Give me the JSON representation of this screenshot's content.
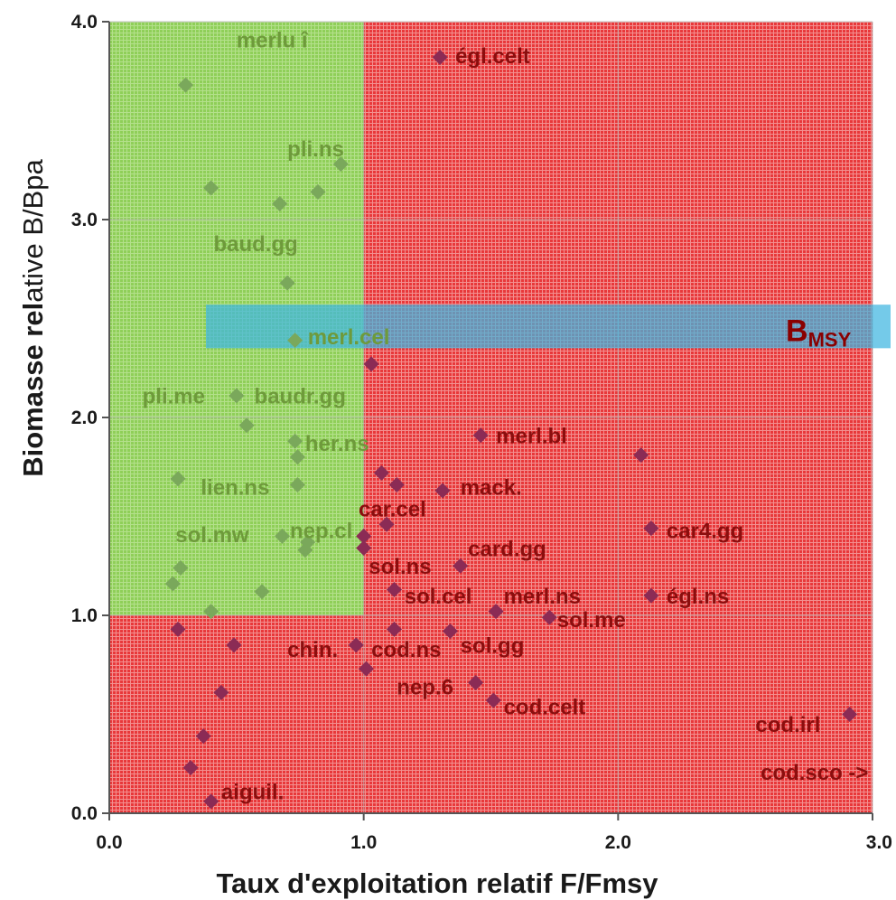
{
  "chart_data": {
    "type": "scatter",
    "xlabel": "Taux d'exploitation relatif  F/Fmsy",
    "ylabel_parts": [
      "Biomasse ",
      "rel",
      "ative  B/Bpa"
    ],
    "xlim": [
      0,
      3
    ],
    "ylim": [
      0,
      4
    ],
    "xticks": [
      "0.0",
      "1.0",
      "2.0",
      "3.0"
    ],
    "yticks": [
      "0.0",
      "1.0",
      "2.0",
      "3.0",
      "4.0"
    ],
    "colors": {
      "green_zone": "#8fd05a",
      "red_zone": "#e83a3a",
      "marker": "#8b2b55",
      "band": "#3fb6e0"
    },
    "bmsy": {
      "label": "B",
      "sub": "MSY",
      "y_low": 2.35,
      "y_high": 2.57
    },
    "points": [
      [
        0.3,
        3.68
      ],
      [
        0.4,
        3.16
      ],
      [
        0.67,
        3.08
      ],
      [
        0.82,
        3.14
      ],
      [
        0.91,
        3.28
      ],
      [
        0.7,
        2.68
      ],
      [
        0.73,
        2.39
      ],
      [
        1.03,
        2.27
      ],
      [
        0.5,
        2.11
      ],
      [
        0.54,
        1.96
      ],
      [
        0.73,
        1.88
      ],
      [
        0.74,
        1.8
      ],
      [
        0.27,
        1.69
      ],
      [
        0.74,
        1.66
      ],
      [
        0.68,
        1.4
      ],
      [
        0.78,
        1.37
      ],
      [
        0.77,
        1.33
      ],
      [
        1.0,
        1.4
      ],
      [
        1.0,
        1.34
      ],
      [
        0.28,
        1.24
      ],
      [
        0.25,
        1.16
      ],
      [
        0.6,
        1.12
      ],
      [
        0.4,
        1.02
      ],
      [
        0.27,
        0.93
      ],
      [
        0.49,
        0.85
      ],
      [
        0.97,
        0.85
      ],
      [
        1.01,
        0.73
      ],
      [
        0.44,
        0.61
      ],
      [
        0.37,
        0.39
      ],
      [
        0.32,
        0.23
      ],
      [
        0.4,
        0.06
      ],
      [
        1.3,
        3.82
      ],
      [
        1.46,
        1.91
      ],
      [
        1.07,
        1.72
      ],
      [
        1.13,
        1.66
      ],
      [
        1.31,
        1.63
      ],
      [
        1.09,
        1.46
      ],
      [
        1.38,
        1.25
      ],
      [
        1.12,
        1.13
      ],
      [
        1.52,
        1.02
      ],
      [
        1.12,
        0.93
      ],
      [
        1.34,
        0.92
      ],
      [
        1.73,
        0.99
      ],
      [
        1.44,
        0.66
      ],
      [
        1.51,
        0.57
      ],
      [
        2.09,
        1.81
      ],
      [
        2.13,
        1.44
      ],
      [
        2.13,
        1.1
      ],
      [
        2.91,
        0.5
      ]
    ],
    "labels": [
      {
        "text": "merlu  î",
        "x": 0.5,
        "y": 3.87,
        "zone": "green"
      },
      {
        "text": "pli.ns",
        "x": 0.7,
        "y": 3.32,
        "zone": "green"
      },
      {
        "text": "baud.gg",
        "x": 0.41,
        "y": 2.84,
        "zone": "green"
      },
      {
        "text": "merl.cel",
        "x": 0.78,
        "y": 2.37,
        "zone": "green"
      },
      {
        "text": "pli.me",
        "x": 0.13,
        "y": 2.07,
        "zone": "green"
      },
      {
        "text": "baudr.gg",
        "x": 0.57,
        "y": 2.07,
        "zone": "green"
      },
      {
        "text": "her.ns",
        "x": 0.77,
        "y": 1.83,
        "zone": "green"
      },
      {
        "text": "lien.ns",
        "x": 0.36,
        "y": 1.61,
        "zone": "green"
      },
      {
        "text": "sol.mw",
        "x": 0.26,
        "y": 1.37,
        "zone": "green"
      },
      {
        "text": "nep.cl",
        "x": 0.71,
        "y": 1.39,
        "zone": "green"
      },
      {
        "text": "égl.celt",
        "x": 1.36,
        "y": 3.79,
        "zone": "red"
      },
      {
        "text": "merl.bl",
        "x": 1.52,
        "y": 1.87,
        "zone": "red"
      },
      {
        "text": "mack.",
        "x": 1.38,
        "y": 1.61,
        "zone": "red"
      },
      {
        "text": "car.cel",
        "x": 0.98,
        "y": 1.5,
        "zone": "red"
      },
      {
        "text": "card.gg",
        "x": 1.41,
        "y": 1.3,
        "zone": "red"
      },
      {
        "text": "sol.ns",
        "x": 1.02,
        "y": 1.21,
        "zone": "red"
      },
      {
        "text": "sol.cel",
        "x": 1.16,
        "y": 1.06,
        "zone": "red"
      },
      {
        "text": "merl.ns",
        "x": 1.55,
        "y": 1.06,
        "zone": "red"
      },
      {
        "text": "sol.me",
        "x": 1.76,
        "y": 0.94,
        "zone": "red"
      },
      {
        "text": "chin.",
        "x": 0.7,
        "y": 0.79,
        "zone": "red"
      },
      {
        "text": "cod.ns",
        "x": 1.03,
        "y": 0.79,
        "zone": "red"
      },
      {
        "text": "sol.gg",
        "x": 1.38,
        "y": 0.81,
        "zone": "red"
      },
      {
        "text": "nep.6",
        "x": 1.13,
        "y": 0.6,
        "zone": "red"
      },
      {
        "text": "cod.celt",
        "x": 1.55,
        "y": 0.5,
        "zone": "red"
      },
      {
        "text": "égl.ns",
        "x": 2.19,
        "y": 1.06,
        "zone": "red"
      },
      {
        "text": "car4.gg",
        "x": 2.19,
        "y": 1.39,
        "zone": "red"
      },
      {
        "text": "cod.irl",
        "x": 2.54,
        "y": 0.41,
        "zone": "red"
      },
      {
        "text": "cod.sco ->",
        "x": 2.56,
        "y": 0.17,
        "zone": "red"
      },
      {
        "text": "aiguil.",
        "x": 0.44,
        "y": 0.07,
        "zone": "red"
      }
    ]
  }
}
